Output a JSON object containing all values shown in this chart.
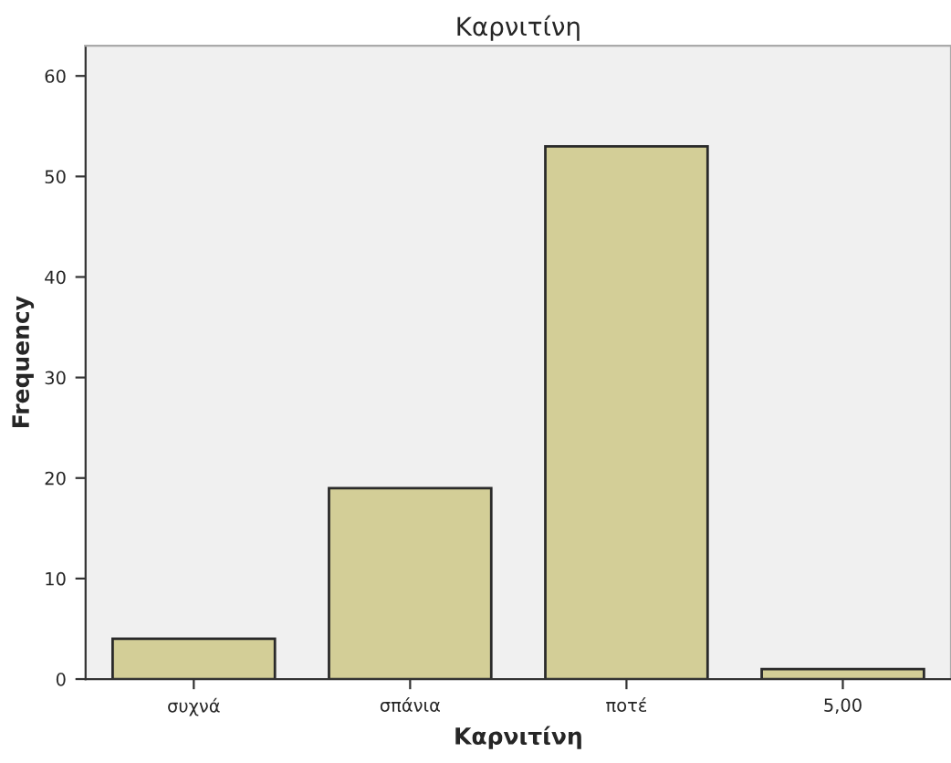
{
  "chart_data": {
    "type": "bar",
    "title": "Καρνιτίνη",
    "xlabel": "Καρνιτίνη",
    "ylabel": "Frequency",
    "categories": [
      "συχνά",
      "σπάνια",
      "ποτέ",
      "5,00"
    ],
    "values": [
      4,
      19,
      53,
      1
    ],
    "color": "#d3ce97",
    "ylim": [
      0,
      63
    ],
    "yticks": [
      0,
      10,
      20,
      30,
      40,
      50,
      60
    ],
    "grid": false,
    "legend": false
  }
}
